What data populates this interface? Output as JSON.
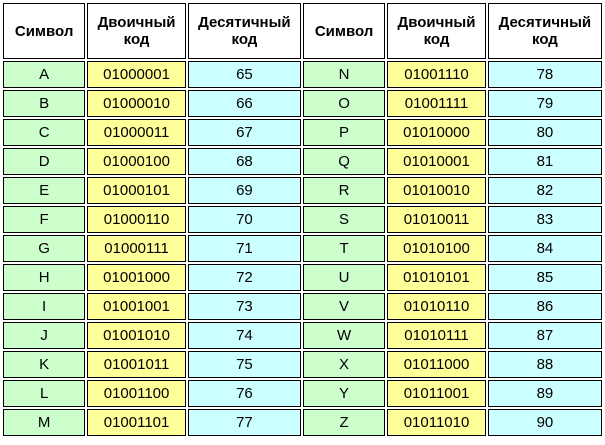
{
  "table": {
    "header": [
      "Символ",
      "Двоичный код",
      "Десятичный код",
      "Символ",
      "Двоичный код",
      "Десятичный код"
    ],
    "rows": [
      [
        "A",
        "01000001",
        "65",
        "N",
        "01001110",
        "78"
      ],
      [
        "B",
        "01000010",
        "66",
        "O",
        "01001111",
        "79"
      ],
      [
        "C",
        "01000011",
        "67",
        "P",
        "01010000",
        "80"
      ],
      [
        "D",
        "01000100",
        "68",
        "Q",
        "01010001",
        "81"
      ],
      [
        "E",
        "01000101",
        "69",
        "R",
        "01010010",
        "82"
      ],
      [
        "F",
        "01000110",
        "70",
        "S",
        "01010011",
        "83"
      ],
      [
        "G",
        "01000111",
        "71",
        "T",
        "01010100",
        "84"
      ],
      [
        "H",
        "01001000",
        "72",
        "U",
        "01010101",
        "85"
      ],
      [
        "I",
        "01001001",
        "73",
        "V",
        "01010110",
        "86"
      ],
      [
        "J",
        "01001010",
        "74",
        "W",
        "01010111",
        "87"
      ],
      [
        "K",
        "01001011",
        "75",
        "X",
        "01011000",
        "88"
      ],
      [
        "L",
        "01001100",
        "76",
        "Y",
        "01011001",
        "89"
      ],
      [
        "M",
        "01001101",
        "77",
        "Z",
        "01011010",
        "90"
      ]
    ]
  }
}
